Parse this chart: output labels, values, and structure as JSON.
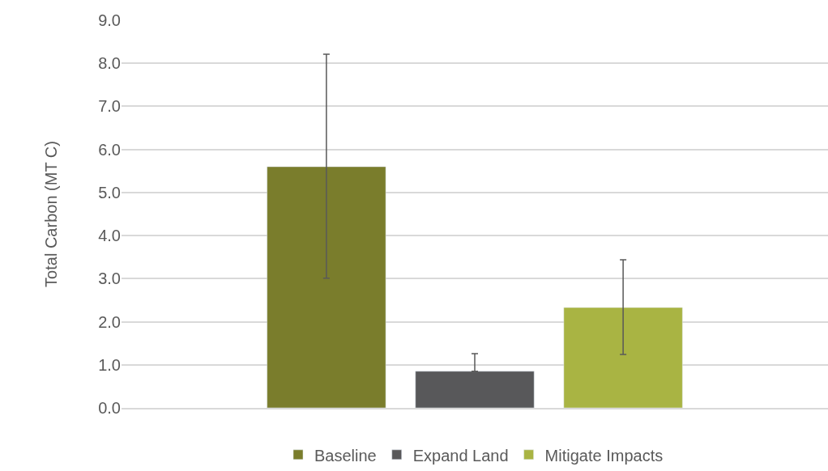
{
  "chart_data": {
    "type": "bar",
    "ylabel": "Total Carbon (MT C)",
    "categories": [
      null
    ],
    "series": [
      {
        "name": "Baseline",
        "color": "#7a7d2c",
        "values": [
          5.6
        ],
        "errors": [
          [
            3.01,
            8.21
          ]
        ]
      },
      {
        "name": "Expand Land",
        "color": "#58585a",
        "values": [
          0.85
        ],
        "errors": [
          [
            0.85,
            1.26
          ]
        ]
      },
      {
        "name": "Mitigate Impacts",
        "color": "#a9b443",
        "values": [
          2.33
        ],
        "errors": [
          [
            1.24,
            3.44
          ]
        ]
      }
    ],
    "ylim": [
      0,
      9
    ],
    "yticks": [
      {
        "value": 0,
        "label": "0.0"
      },
      {
        "value": 1,
        "label": "1.0"
      },
      {
        "value": 2,
        "label": "2.0"
      },
      {
        "value": 3,
        "label": "3.0"
      },
      {
        "value": 4,
        "label": "4.0"
      },
      {
        "value": 5,
        "label": "5.0"
      },
      {
        "value": 6,
        "label": "6.0"
      },
      {
        "value": 7,
        "label": "7.0"
      },
      {
        "value": 8,
        "label": "8.0"
      },
      {
        "value": 9,
        "label": "9.0"
      }
    ],
    "grid": "y",
    "legend": "bottom"
  }
}
